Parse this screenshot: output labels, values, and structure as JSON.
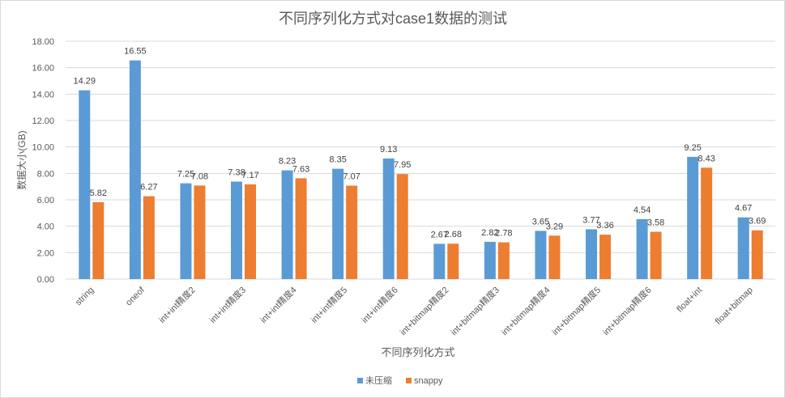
{
  "chart_data": {
    "type": "bar",
    "title": "不同序列化方式对case1数据的测试",
    "xlabel": "不同序列化方式",
    "ylabel": "数据大小(GB)",
    "ylim": [
      0,
      18
    ],
    "yticks": [
      "0.00",
      "2.00",
      "4.00",
      "6.00",
      "8.00",
      "10.00",
      "12.00",
      "14.00",
      "16.00",
      "18.00"
    ],
    "grid": true,
    "legend_position": "bottom",
    "categories": [
      "string",
      "oneof",
      "int+int精度2",
      "int+int精度3",
      "int+int精度4",
      "int+int精度5",
      "int+int精度6",
      "int+bitmap精度2",
      "int+bitmap精度3",
      "int+bitmap精度4",
      "int+bitmap精度5",
      "int+bitmap精度6",
      "float+int",
      "float+bitmap"
    ],
    "series": [
      {
        "name": "未压缩",
        "color": "#5b9bd5",
        "values": [
          14.29,
          16.55,
          7.25,
          7.38,
          8.23,
          8.35,
          9.13,
          2.67,
          2.82,
          3.65,
          3.77,
          4.54,
          9.25,
          4.67
        ]
      },
      {
        "name": "snappy",
        "color": "#ed7d31",
        "values": [
          5.82,
          6.27,
          7.08,
          7.17,
          7.63,
          7.07,
          7.95,
          2.68,
          2.78,
          3.29,
          3.36,
          3.58,
          8.43,
          3.69
        ]
      }
    ]
  }
}
